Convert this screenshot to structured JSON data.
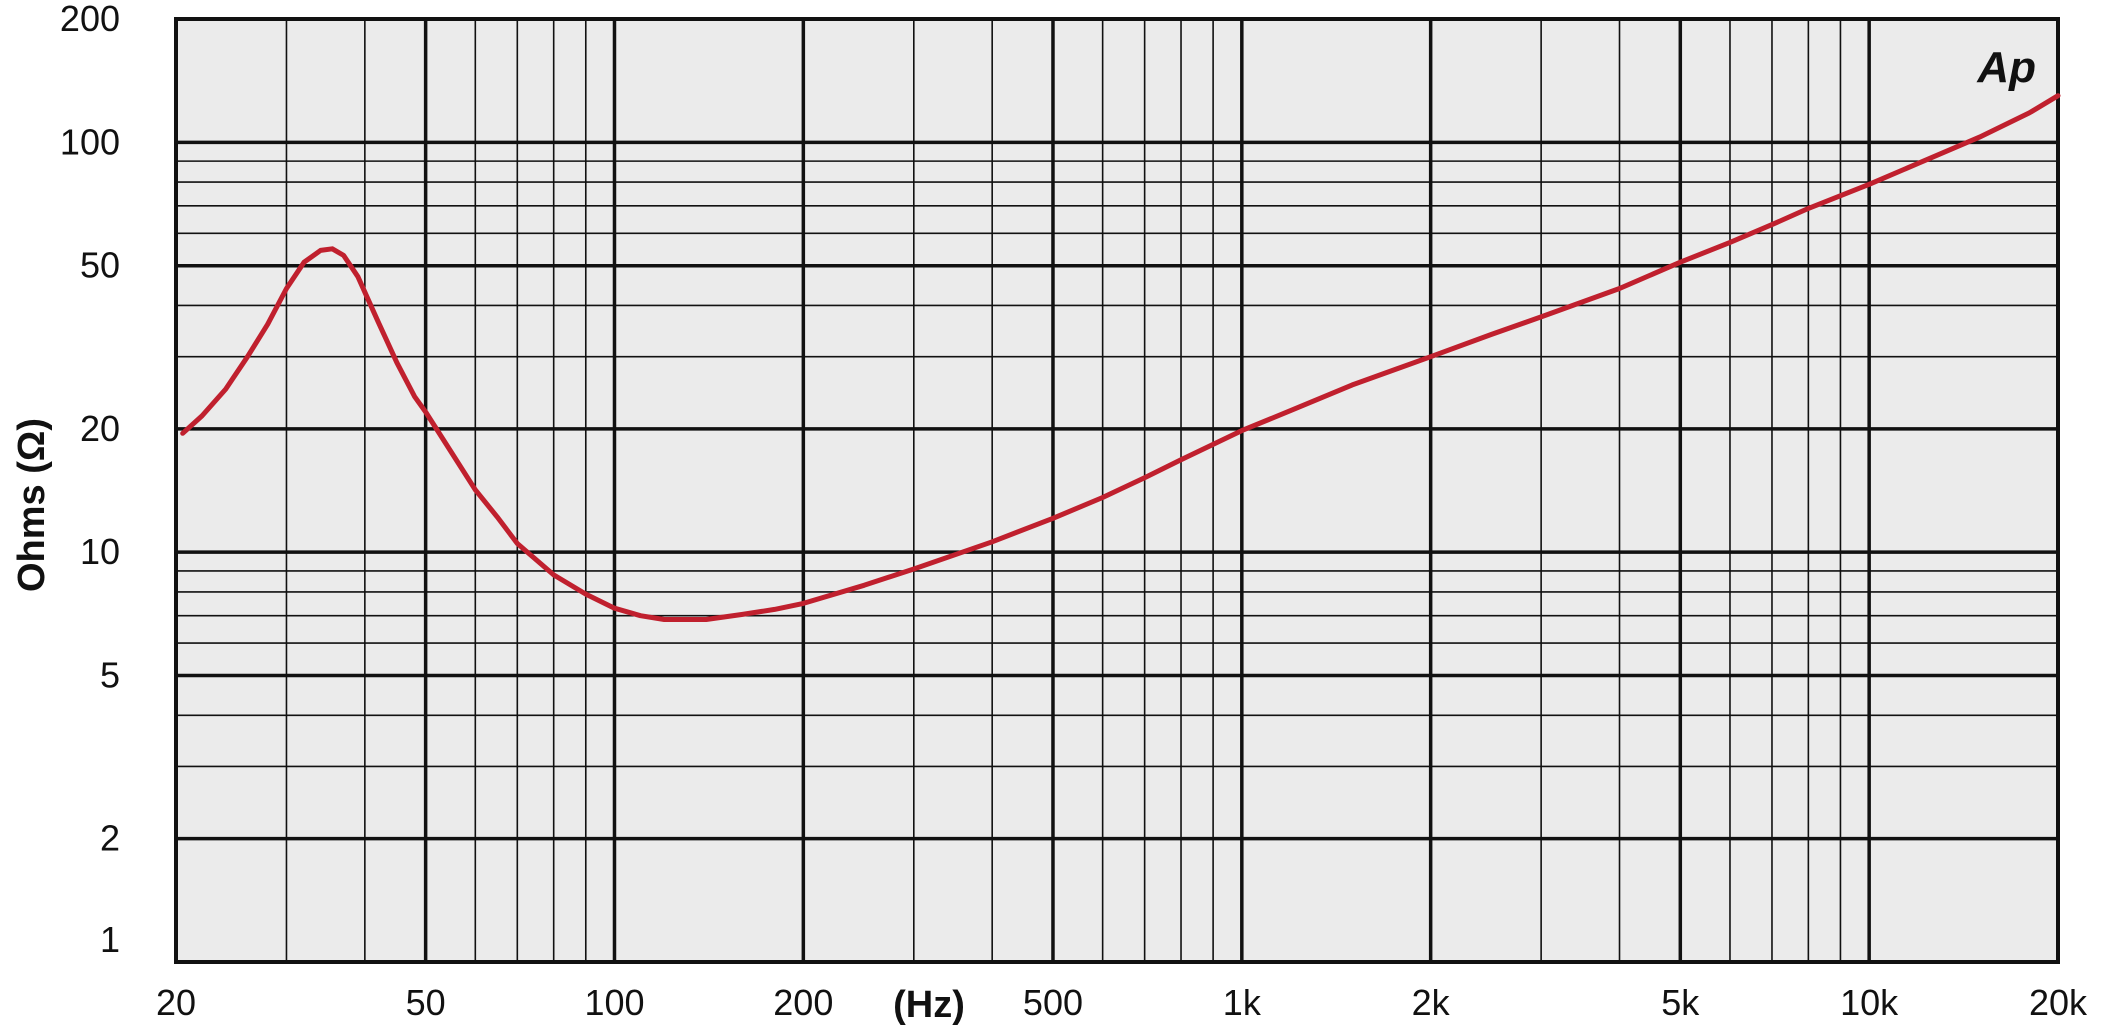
{
  "chart_data": {
    "type": "line",
    "title": "",
    "xlabel": "(Hz)",
    "ylabel": "Ohms (Ω)",
    "xscale": "log",
    "yscale": "log",
    "xlim": [
      20,
      20000
    ],
    "ylim": [
      1,
      200
    ],
    "grid": true,
    "x_ticks": [
      {
        "value": 20,
        "label": "20"
      },
      {
        "value": 50,
        "label": "50"
      },
      {
        "value": 100,
        "label": "100"
      },
      {
        "value": 200,
        "label": "200"
      },
      {
        "value": 500,
        "label": "500"
      },
      {
        "value": 1000,
        "label": "1k"
      },
      {
        "value": 2000,
        "label": "2k"
      },
      {
        "value": 5000,
        "label": "5k"
      },
      {
        "value": 10000,
        "label": "10k"
      },
      {
        "value": 20000,
        "label": "20k"
      }
    ],
    "y_ticks": [
      {
        "value": 1,
        "label": "1"
      },
      {
        "value": 2,
        "label": "2"
      },
      {
        "value": 5,
        "label": "5"
      },
      {
        "value": 10,
        "label": "10"
      },
      {
        "value": 20,
        "label": "20"
      },
      {
        "value": 50,
        "label": "50"
      },
      {
        "value": 100,
        "label": "100"
      },
      {
        "value": 200,
        "label": "200"
      }
    ],
    "series": [
      {
        "color": "#c0202e",
        "points": [
          [
            20.5,
            19.5
          ],
          [
            22,
            21.5
          ],
          [
            24,
            25
          ],
          [
            26,
            30
          ],
          [
            28,
            36
          ],
          [
            30,
            44
          ],
          [
            32,
            51
          ],
          [
            34,
            54.5
          ],
          [
            35.5,
            55
          ],
          [
            37,
            53
          ],
          [
            39,
            47
          ],
          [
            42,
            36.5
          ],
          [
            45,
            29
          ],
          [
            48,
            24
          ],
          [
            50,
            22
          ],
          [
            55,
            17.5
          ],
          [
            60,
            14.2
          ],
          [
            65,
            12.2
          ],
          [
            70,
            10.5
          ],
          [
            80,
            8.8
          ],
          [
            90,
            7.9
          ],
          [
            100,
            7.3
          ],
          [
            110,
            7.0
          ],
          [
            120,
            6.85
          ],
          [
            140,
            6.85
          ],
          [
            160,
            7.05
          ],
          [
            180,
            7.25
          ],
          [
            200,
            7.5
          ],
          [
            250,
            8.3
          ],
          [
            300,
            9.1
          ],
          [
            400,
            10.6
          ],
          [
            500,
            12.1
          ],
          [
            600,
            13.6
          ],
          [
            700,
            15.2
          ],
          [
            800,
            16.8
          ],
          [
            1000,
            19.8
          ],
          [
            1200,
            22.2
          ],
          [
            1500,
            25.6
          ],
          [
            2000,
            30
          ],
          [
            2500,
            34
          ],
          [
            3000,
            37.5
          ],
          [
            4000,
            44
          ],
          [
            5000,
            51
          ],
          [
            6000,
            57
          ],
          [
            7000,
            63
          ],
          [
            8000,
            69
          ],
          [
            10000,
            79
          ],
          [
            12000,
            89
          ],
          [
            15000,
            103
          ],
          [
            18000,
            118
          ],
          [
            20000,
            130
          ]
        ]
      }
    ]
  },
  "logo": {
    "text": "Ap"
  }
}
